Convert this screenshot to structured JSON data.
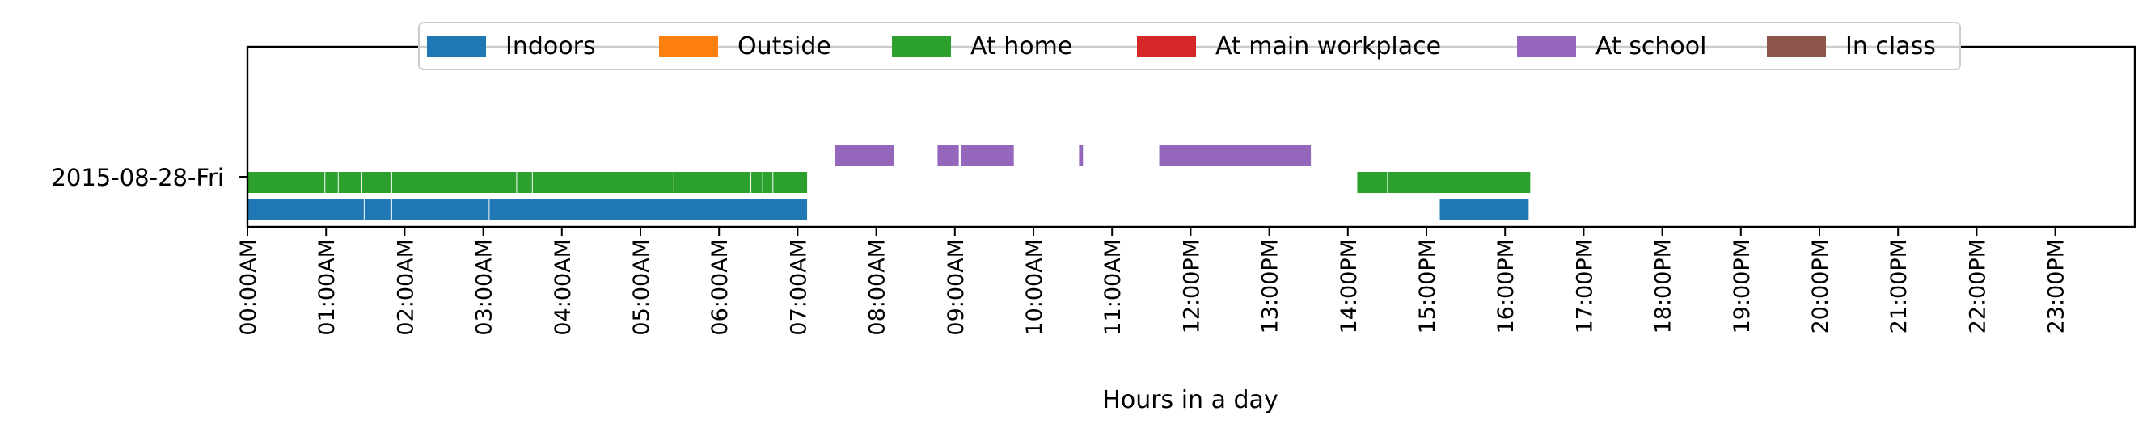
{
  "chart_data": {
    "type": "timeline",
    "xlabel": "Hours in a day",
    "xlim_hours": [
      0,
      24
    ],
    "x_ticks": [
      "00:00AM",
      "01:00AM",
      "02:00AM",
      "03:00AM",
      "04:00AM",
      "05:00AM",
      "06:00AM",
      "07:00AM",
      "08:00AM",
      "09:00AM",
      "10:00AM",
      "11:00AM",
      "12:00PM",
      "13:00PM",
      "14:00PM",
      "15:00PM",
      "16:00PM",
      "17:00PM",
      "18:00PM",
      "19:00PM",
      "20:00PM",
      "21:00PM",
      "22:00PM",
      "23:00PM"
    ],
    "day_label": "2015-08-28-Fri",
    "legend_placement": "top-center",
    "grid": false,
    "series": [
      {
        "name": "Indoors",
        "color": "#1f77b4",
        "lane": 0,
        "intervals": [
          [
            0.0,
            1.48
          ],
          [
            1.49,
            1.82
          ],
          [
            1.84,
            3.07
          ],
          [
            3.08,
            7.12
          ],
          [
            15.17,
            16.3
          ]
        ]
      },
      {
        "name": "Outside",
        "color": "#ff7f0e",
        "lane": 1,
        "intervals": []
      },
      {
        "name": "At home",
        "color": "#2ca02c",
        "lane": 1,
        "intervals": [
          [
            0.0,
            0.98
          ],
          [
            0.99,
            1.15
          ],
          [
            1.16,
            1.45
          ],
          [
            1.46,
            1.82
          ],
          [
            1.84,
            3.42
          ],
          [
            3.43,
            3.62
          ],
          [
            3.63,
            5.42
          ],
          [
            5.43,
            6.4
          ],
          [
            6.41,
            6.55
          ],
          [
            6.56,
            6.68
          ],
          [
            6.69,
            7.12
          ],
          [
            14.12,
            14.5
          ],
          [
            14.51,
            16.32
          ]
        ]
      },
      {
        "name": "At main workplace",
        "color": "#d62728",
        "lane": 2,
        "intervals": []
      },
      {
        "name": "At school",
        "color": "#9467bd",
        "lane": 2,
        "intervals": [
          [
            7.47,
            8.23
          ],
          [
            8.78,
            9.05
          ],
          [
            9.08,
            9.75
          ],
          [
            10.58,
            10.63
          ],
          [
            11.6,
            13.53
          ]
        ]
      },
      {
        "name": "In class",
        "color": "#8c564b",
        "lane": 3,
        "intervals": []
      }
    ]
  }
}
